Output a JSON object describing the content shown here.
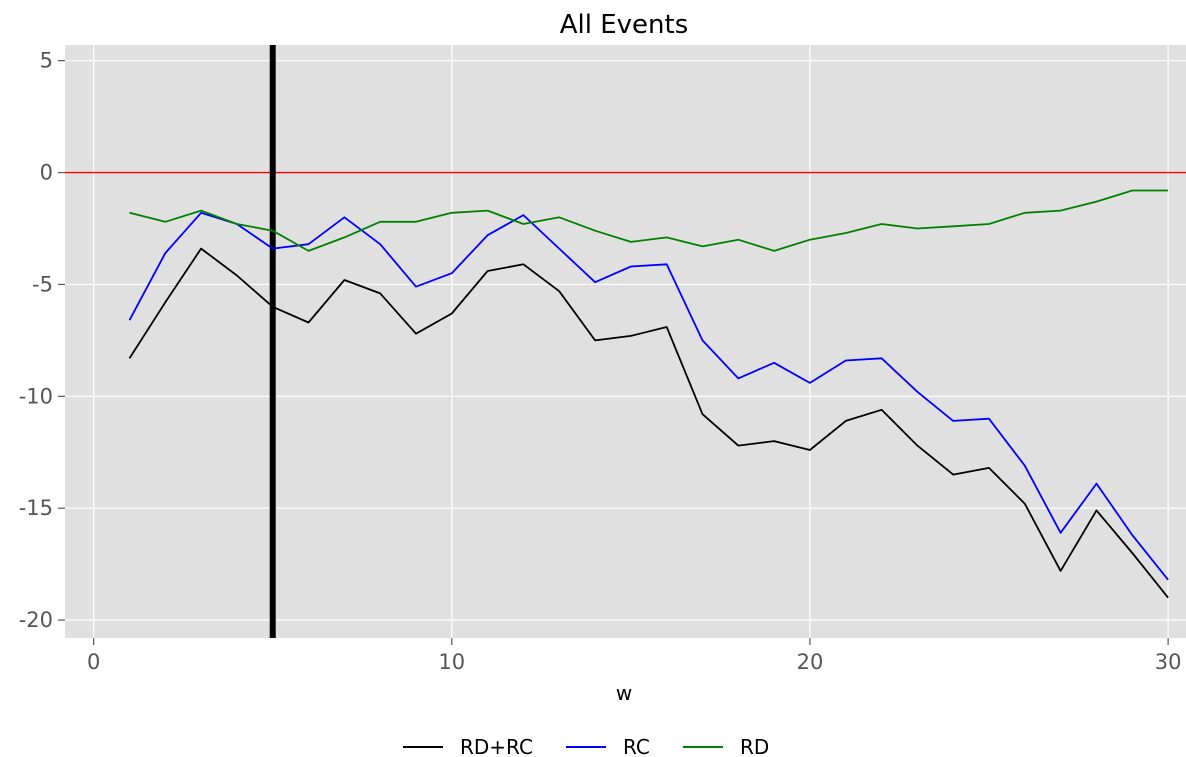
{
  "chart_data": {
    "type": "line",
    "title": "All Events",
    "xlabel": "w",
    "ylabel": "",
    "xlim": [
      -0.8,
      30.5
    ],
    "ylim": [
      -20.8,
      5.7
    ],
    "xticks": [
      0,
      10,
      20,
      30
    ],
    "yticks": [
      5,
      0,
      -5,
      -10,
      -15,
      -20
    ],
    "grid": true,
    "background": "#e0e0e0",
    "legend_position": "bottom-center",
    "reference_lines": [
      {
        "orientation": "horizontal",
        "value": 0,
        "color": "#ff0000"
      },
      {
        "orientation": "vertical",
        "value": 5,
        "color": "#000000"
      }
    ],
    "x": [
      1,
      2,
      3,
      4,
      5,
      6,
      7,
      8,
      9,
      10,
      11,
      12,
      13,
      14,
      15,
      16,
      17,
      18,
      19,
      20,
      21,
      22,
      23,
      24,
      25,
      26,
      27,
      28,
      29,
      30
    ],
    "series": [
      {
        "name": "RD+RC",
        "color": "#000000",
        "values": [
          -8.3,
          -5.8,
          -3.4,
          -4.6,
          -6.0,
          -6.7,
          -4.8,
          -5.4,
          -7.2,
          -6.3,
          -4.4,
          -4.1,
          -5.3,
          -7.5,
          -7.3,
          -6.9,
          -10.8,
          -12.2,
          -12.0,
          -12.4,
          -11.1,
          -10.6,
          -12.2,
          -13.5,
          -13.2,
          -14.8,
          -17.8,
          -15.1,
          -17.0,
          -19.0
        ]
      },
      {
        "name": "RC",
        "color": "#0000ff",
        "values": [
          -6.6,
          -3.6,
          -1.8,
          -2.3,
          -3.4,
          -3.2,
          -2.0,
          -3.2,
          -5.1,
          -4.5,
          -2.8,
          -1.9,
          -3.4,
          -4.9,
          -4.2,
          -4.1,
          -7.5,
          -9.2,
          -8.5,
          -9.4,
          -8.4,
          -8.3,
          -9.8,
          -11.1,
          -11.0,
          -13.1,
          -16.1,
          -13.9,
          -16.2,
          -18.2
        ]
      },
      {
        "name": "RD",
        "color": "#008000",
        "values": [
          -1.8,
          -2.2,
          -1.7,
          -2.3,
          -2.6,
          -3.5,
          -2.9,
          -2.2,
          -2.2,
          -1.8,
          -1.7,
          -2.3,
          -2.0,
          -2.6,
          -3.1,
          -2.9,
          -3.3,
          -3.0,
          -3.5,
          -3.0,
          -2.7,
          -2.3,
          -2.5,
          -2.4,
          -2.3,
          -1.8,
          -1.7,
          -1.3,
          -0.8,
          -0.8
        ]
      }
    ]
  }
}
